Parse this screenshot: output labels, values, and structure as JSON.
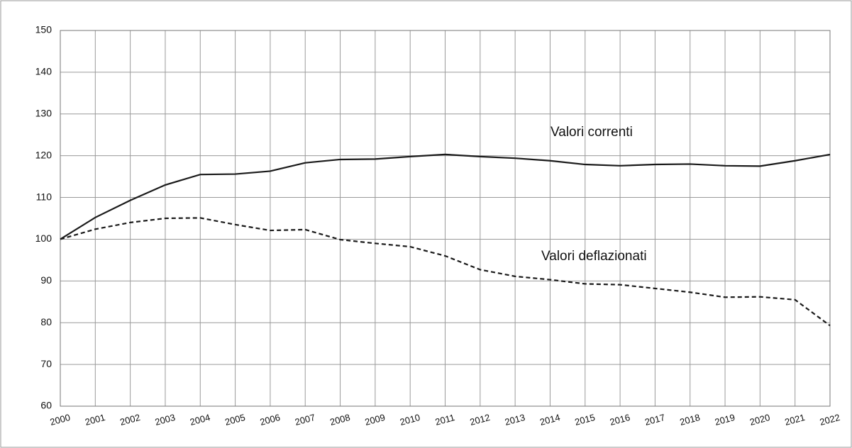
{
  "chart_data": {
    "type": "line",
    "categories": [
      "2000",
      "2001",
      "2002",
      "2003",
      "2004",
      "2005",
      "2006",
      "2007",
      "2008",
      "2009",
      "2010",
      "2011",
      "2012",
      "2013",
      "2014",
      "2015",
      "2016",
      "2017",
      "2018",
      "2019",
      "2020",
      "2021",
      "2022"
    ],
    "series": [
      {
        "name": "Valori correnti",
        "color": "#1a1a1a",
        "line_style": "solid",
        "values": [
          100,
          105.2,
          109.3,
          113,
          115.5,
          115.6,
          116.3,
          118.3,
          119.1,
          119.2,
          119.8,
          120.3,
          119.8,
          119.4,
          118.8,
          117.9,
          117.6,
          117.9,
          118,
          117.6,
          117.5,
          118.8,
          120.3
        ]
      },
      {
        "name": "Valori deflazionati",
        "color": "#1a1a1a",
        "line_style": "dashed",
        "values": [
          100,
          102.4,
          104,
          105,
          105.1,
          103.5,
          102.1,
          102.3,
          99.9,
          99,
          98.2,
          96,
          92.7,
          91.1,
          90.3,
          89.3,
          89.1,
          88.2,
          87.3,
          86.1,
          86.2,
          85.5,
          79.3
        ]
      }
    ],
    "ylim": [
      60,
      150
    ],
    "yticks": [
      60,
      70,
      80,
      90,
      100,
      110,
      120,
      130,
      140,
      150
    ],
    "grid": true
  }
}
